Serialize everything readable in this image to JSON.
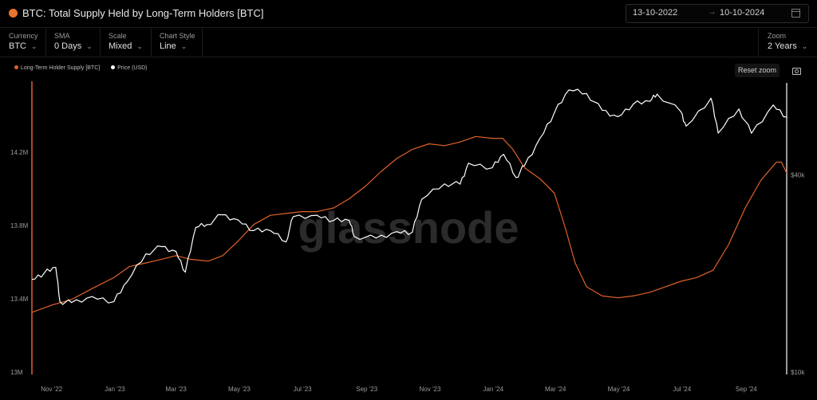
{
  "header": {
    "title": "BTC: Total Supply Held by Long-Term Holders [BTC]",
    "date_start": "13-10-2022",
    "date_end": "10-10-2024",
    "date_arrow": "→"
  },
  "controls": {
    "currency": {
      "label": "Currency",
      "value": "BTC"
    },
    "sma": {
      "label": "SMA",
      "value": "0 Days"
    },
    "scale": {
      "label": "Scale",
      "value": "Mixed"
    },
    "chart_style": {
      "label": "Chart Style",
      "value": "Line"
    },
    "zoom": {
      "label": "Zoom",
      "value": "2 Years"
    }
  },
  "toolbar": {
    "reset_zoom": "Reset zoom"
  },
  "watermark": "glassnode",
  "colors": {
    "lth_supply": "#e0622a",
    "price": "#ffffff",
    "background": "#000000",
    "accent": "#e8742f"
  },
  "chart_data": {
    "type": "line",
    "title": "BTC: Total Supply Held by Long-Term Holders [BTC]",
    "x_start": "2022-10-13",
    "x_end": "2024-10-10",
    "x_ticks": [
      {
        "date": "2022-11-01",
        "label": "Nov '22"
      },
      {
        "date": "2023-01-01",
        "label": "Jan '23"
      },
      {
        "date": "2023-03-01",
        "label": "Mar '23"
      },
      {
        "date": "2023-05-01",
        "label": "May '23"
      },
      {
        "date": "2023-07-01",
        "label": "Jul '23"
      },
      {
        "date": "2023-09-01",
        "label": "Sep '23"
      },
      {
        "date": "2023-11-01",
        "label": "Nov '23"
      },
      {
        "date": "2024-01-01",
        "label": "Jan '24"
      },
      {
        "date": "2024-03-01",
        "label": "Mar '24"
      },
      {
        "date": "2024-05-01",
        "label": "May '24"
      },
      {
        "date": "2024-07-01",
        "label": "Jul '24"
      },
      {
        "date": "2024-09-01",
        "label": "Sep '24"
      }
    ],
    "y_left": {
      "scale": "linear",
      "range": [
        13000000,
        14300000
      ],
      "ticks": [
        {
          "value": 13000000,
          "label": "13M"
        },
        {
          "value": 13400000,
          "label": "13.4M"
        },
        {
          "value": 13800000,
          "label": "13.8M"
        },
        {
          "value": 14200000,
          "label": "14.2M"
        }
      ]
    },
    "y_right": {
      "scale": "log",
      "range": [
        10000,
        100000
      ],
      "ticks": [
        {
          "value": 10000,
          "label": "$10k"
        },
        {
          "value": 40000,
          "label": "$40k"
        }
      ]
    },
    "grid": false,
    "legend_position": "top-left",
    "series": [
      {
        "name": "Long-Term Holder Supply [BTC]",
        "axis": "left",
        "color": "#e0622a",
        "points": [
          [
            "2022-10-13",
            13330000
          ],
          [
            "2022-11-01",
            13370000
          ],
          [
            "2022-11-20",
            13400000
          ],
          [
            "2022-12-10",
            13460000
          ],
          [
            "2022-12-31",
            13520000
          ],
          [
            "2023-01-15",
            13580000
          ],
          [
            "2023-01-31",
            13600000
          ],
          [
            "2023-02-15",
            13620000
          ],
          [
            "2023-03-01",
            13640000
          ],
          [
            "2023-03-15",
            13620000
          ],
          [
            "2023-04-01",
            13610000
          ],
          [
            "2023-04-15",
            13640000
          ],
          [
            "2023-04-30",
            13720000
          ],
          [
            "2023-05-15",
            13810000
          ],
          [
            "2023-05-31",
            13860000
          ],
          [
            "2023-06-15",
            13870000
          ],
          [
            "2023-06-30",
            13880000
          ],
          [
            "2023-07-15",
            13880000
          ],
          [
            "2023-07-31",
            13900000
          ],
          [
            "2023-08-15",
            13950000
          ],
          [
            "2023-08-31",
            14020000
          ],
          [
            "2023-09-15",
            14100000
          ],
          [
            "2023-09-30",
            14170000
          ],
          [
            "2023-10-15",
            14220000
          ],
          [
            "2023-10-31",
            14250000
          ],
          [
            "2023-11-15",
            14240000
          ],
          [
            "2023-11-30",
            14260000
          ],
          [
            "2023-12-15",
            14290000
          ],
          [
            "2023-12-31",
            14280000
          ],
          [
            "2024-01-10",
            14280000
          ],
          [
            "2024-01-20",
            14220000
          ],
          [
            "2024-01-31",
            14120000
          ],
          [
            "2024-02-15",
            14060000
          ],
          [
            "2024-02-29",
            13980000
          ],
          [
            "2024-03-10",
            13800000
          ],
          [
            "2024-03-20",
            13600000
          ],
          [
            "2024-03-31",
            13470000
          ],
          [
            "2024-04-15",
            13420000
          ],
          [
            "2024-04-30",
            13410000
          ],
          [
            "2024-05-15",
            13420000
          ],
          [
            "2024-05-31",
            13440000
          ],
          [
            "2024-06-15",
            13470000
          ],
          [
            "2024-06-30",
            13500000
          ],
          [
            "2024-07-15",
            13520000
          ],
          [
            "2024-07-31",
            13560000
          ],
          [
            "2024-08-15",
            13700000
          ],
          [
            "2024-08-31",
            13900000
          ],
          [
            "2024-09-15",
            14050000
          ],
          [
            "2024-09-30",
            14150000
          ],
          [
            "2024-10-05",
            14150000
          ],
          [
            "2024-10-10",
            14090000
          ]
        ]
      },
      {
        "name": "Price (USD)",
        "axis": "right",
        "color": "#ffffff",
        "points": [
          [
            "2022-10-13",
            19300
          ],
          [
            "2022-10-25",
            20200
          ],
          [
            "2022-11-05",
            21000
          ],
          [
            "2022-11-09",
            16500
          ],
          [
            "2022-11-20",
            16400
          ],
          [
            "2022-12-10",
            17100
          ],
          [
            "2022-12-31",
            16500
          ],
          [
            "2023-01-13",
            19000
          ],
          [
            "2023-01-31",
            23100
          ],
          [
            "2023-02-15",
            24300
          ],
          [
            "2023-03-01",
            23500
          ],
          [
            "2023-03-10",
            20300
          ],
          [
            "2023-03-20",
            27800
          ],
          [
            "2023-03-31",
            28400
          ],
          [
            "2023-04-14",
            30400
          ],
          [
            "2023-04-30",
            29300
          ],
          [
            "2023-05-15",
            27200
          ],
          [
            "2023-05-31",
            27200
          ],
          [
            "2023-06-15",
            25100
          ],
          [
            "2023-06-22",
            30000
          ],
          [
            "2023-07-15",
            30300
          ],
          [
            "2023-07-31",
            29200
          ],
          [
            "2023-08-15",
            29200
          ],
          [
            "2023-08-20",
            26100
          ],
          [
            "2023-09-10",
            25800
          ],
          [
            "2023-09-30",
            27000
          ],
          [
            "2023-10-15",
            26900
          ],
          [
            "2023-10-24",
            33900
          ],
          [
            "2023-11-15",
            37800
          ],
          [
            "2023-11-30",
            37700
          ],
          [
            "2023-12-08",
            43700
          ],
          [
            "2023-12-31",
            42300
          ],
          [
            "2024-01-11",
            46500
          ],
          [
            "2024-01-23",
            39500
          ],
          [
            "2024-01-31",
            42900
          ],
          [
            "2024-02-15",
            52000
          ],
          [
            "2024-02-29",
            62400
          ],
          [
            "2024-03-14",
            73100
          ],
          [
            "2024-03-31",
            71300
          ],
          [
            "2024-04-15",
            63400
          ],
          [
            "2024-04-30",
            60600
          ],
          [
            "2024-05-15",
            66200
          ],
          [
            "2024-05-31",
            67500
          ],
          [
            "2024-06-07",
            71000
          ],
          [
            "2024-06-30",
            62700
          ],
          [
            "2024-07-05",
            56700
          ],
          [
            "2024-07-29",
            69000
          ],
          [
            "2024-08-05",
            54000
          ],
          [
            "2024-08-25",
            64000
          ],
          [
            "2024-09-06",
            53900
          ],
          [
            "2024-09-27",
            65800
          ],
          [
            "2024-10-10",
            60400
          ]
        ]
      }
    ]
  }
}
